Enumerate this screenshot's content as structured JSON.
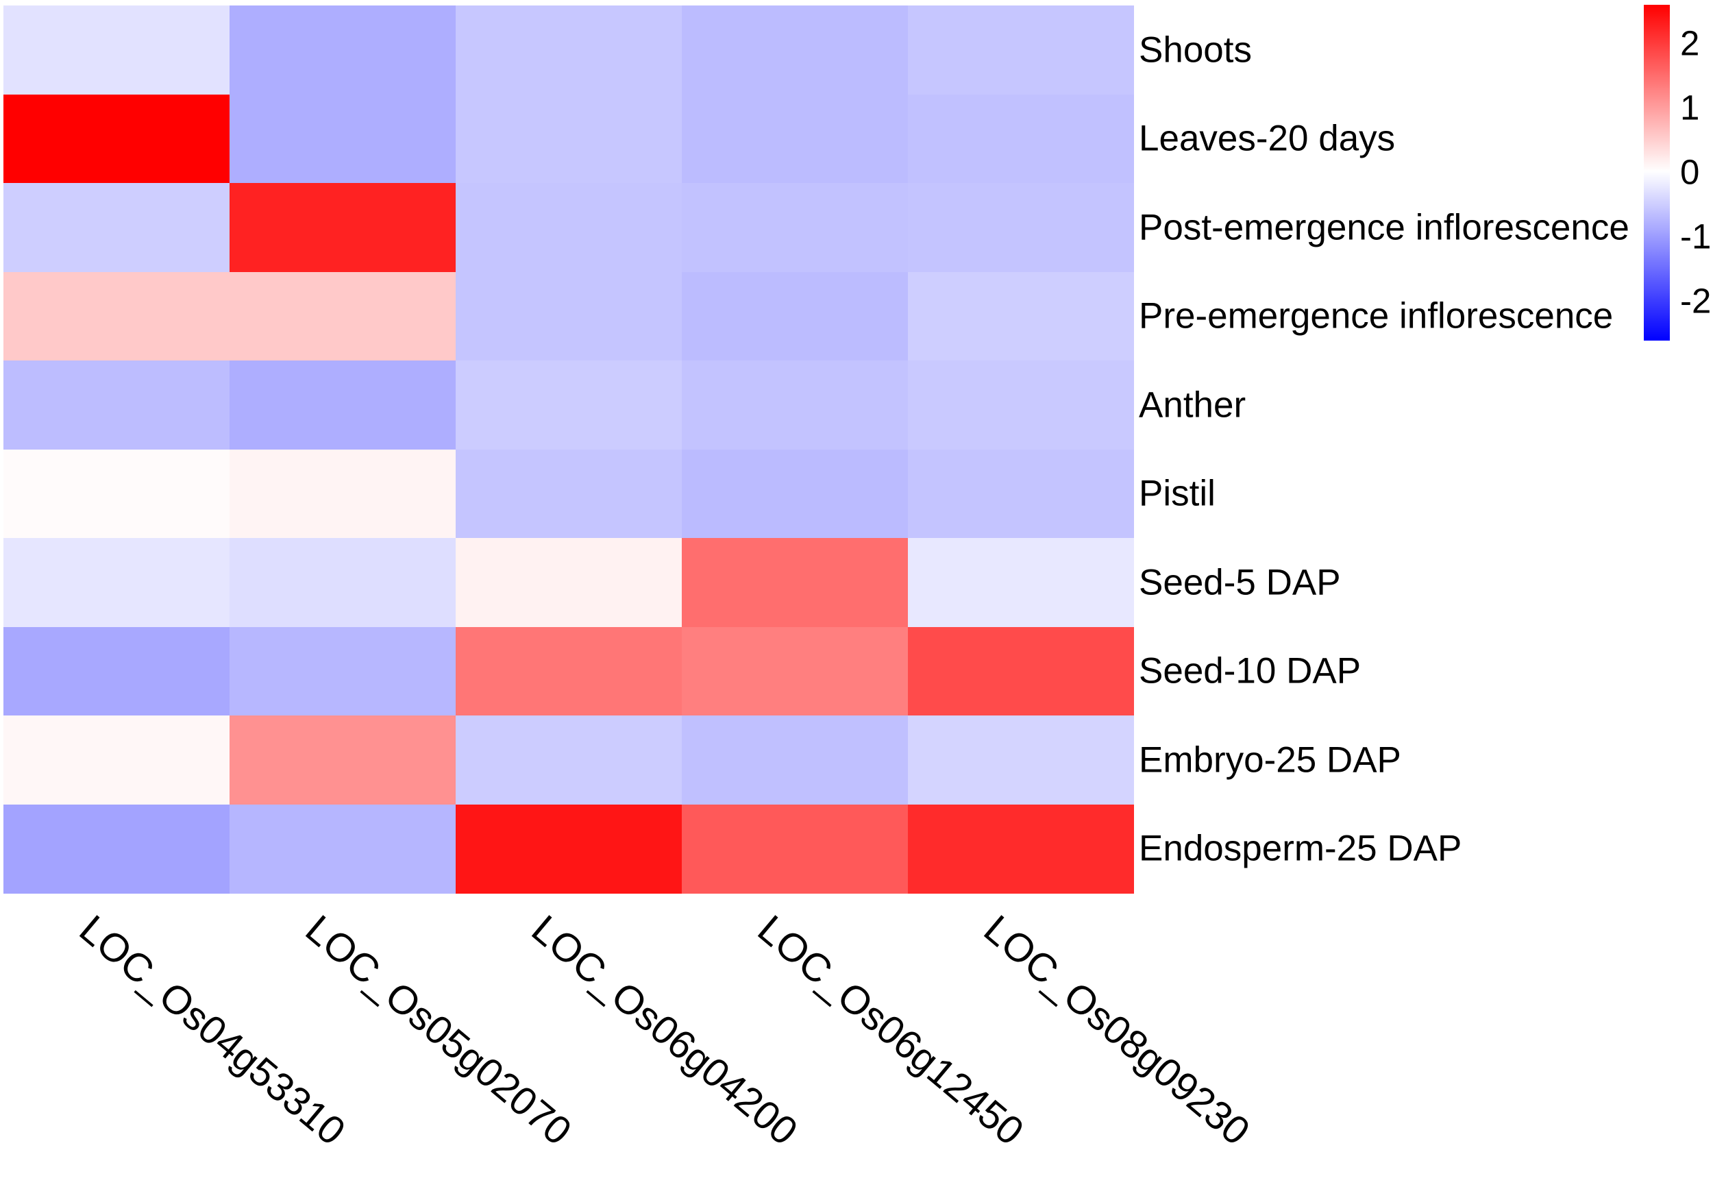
{
  "figure": {
    "background": "#ffffff"
  },
  "chart_data": {
    "type": "heatmap",
    "title": "",
    "xlabel": "",
    "ylabel": "",
    "columns": [
      "LOC_Os04g53310",
      "LOC_Os05g02070",
      "LOC_Os06g04200",
      "LOC_Os06g12450",
      "LOC_Os08g09230"
    ],
    "rows": [
      "Shoots",
      "Leaves-20 days",
      "Post-emergence inflorescence",
      "Pre-emergence inflorescence",
      "Anther",
      "Pistil",
      "Seed-5 DAP",
      "Seed-10 DAP",
      "Embryo-25 DAP",
      "Endosperm-25 DAP"
    ],
    "values": [
      [
        -0.3,
        -0.83,
        -0.57,
        -0.68,
        -0.58
      ],
      [
        2.6,
        -0.83,
        -0.57,
        -0.68,
        -0.63
      ],
      [
        -0.5,
        2.25,
        -0.59,
        -0.62,
        -0.6
      ],
      [
        0.55,
        0.55,
        -0.59,
        -0.68,
        -0.5
      ],
      [
        -0.67,
        -0.83,
        -0.52,
        -0.61,
        -0.55
      ],
      [
        0.04,
        0.11,
        -0.59,
        -0.69,
        -0.6
      ],
      [
        -0.25,
        -0.34,
        0.13,
        1.48,
        -0.23
      ],
      [
        -0.89,
        -0.73,
        1.4,
        1.31,
        1.84
      ],
      [
        0.08,
        1.12,
        -0.52,
        -0.64,
        -0.44
      ],
      [
        -0.94,
        -0.74,
        2.39,
        1.69,
        2.16
      ]
    ],
    "color_scale": {
      "type": "diverging",
      "min": -2.6,
      "max": 2.6,
      "negative_color": "#0000FF",
      "zero_color": "#FFFFFF",
      "positive_color": "#FF0000",
      "ticks": [
        2,
        1,
        0,
        -1,
        -2
      ],
      "position": "right"
    },
    "grid": false,
    "legend_position": "right",
    "row_labels_position": "right",
    "col_labels_rotation_deg": 40
  }
}
